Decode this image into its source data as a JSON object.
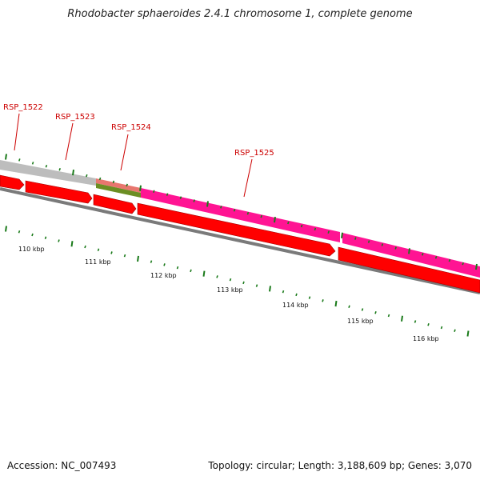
{
  "title": "Rhodobacter sphaeroides 2.4.1 chromosome 1, complete genome",
  "footer": {
    "accession": "Accession: NC_007493",
    "summary": "Topology: circular; Length: 3,188,609 bp; Genes: 3,070"
  },
  "colors": {
    "gray_band": "#bdbdbd",
    "red": "#ff0000",
    "magenta": "#ff1493",
    "salmon": "#e8766e",
    "olive": "#6b8e23",
    "axis": "#7a7a7a",
    "tick": "#1a7a1a",
    "label": "#cc0000"
  },
  "gene_labels": [
    {
      "name": "RSP_1522"
    },
    {
      "name": "RSP_1523"
    },
    {
      "name": "RSP_1524"
    },
    {
      "name": "RSP_1525"
    }
  ],
  "kbp_labels": [
    "110 kbp",
    "111 kbp",
    "112 kbp",
    "113 kbp",
    "114 kbp",
    "115 kbp",
    "116 kbp"
  ]
}
